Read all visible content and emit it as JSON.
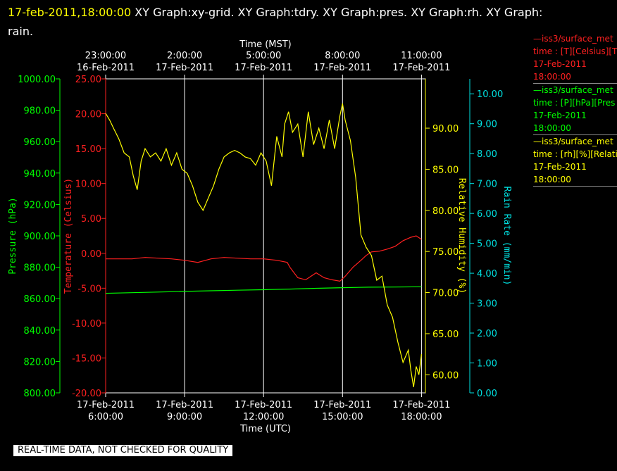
{
  "header": {
    "timestamp": "17-feb-2011,18:00:00",
    "title_rest": " XY Graph:xy-grid.  XY Graph:tdry.  XY Graph:pres.  XY Graph:rh.  XY Graph:",
    "title_line2": "rain."
  },
  "legend": [
    {
      "line1": "—iss3/surface_met",
      "line2": "time : [T][Celsius][T",
      "line3": "17-Feb-2011",
      "line4": "18:00:00",
      "color": "#ff2020"
    },
    {
      "line1": "—iss3/surface_met",
      "line2": "time : [P][hPa][Pres",
      "line3": "17-Feb-2011",
      "line4": "18:00:00",
      "color": "#00ff00"
    },
    {
      "line1": "—iss3/surface_met",
      "line2": "time : [rh][%][Relati",
      "line3": "17-Feb-2011",
      "line4": "18:00:00",
      "color": "#ffff00"
    }
  ],
  "qc_label": "REAL-TIME DATA, NOT CHECKED FOR QUALITY",
  "chart_data": {
    "type": "line",
    "title": "",
    "xlabel_bottom": "Time (UTC)",
    "xlabel_top": "Time (MST)",
    "x_ticks_bottom": [
      {
        "date": "17-Feb-2011",
        "time": "6:00:00",
        "hour": 6
      },
      {
        "date": "17-Feb-2011",
        "time": "9:00:00",
        "hour": 9
      },
      {
        "date": "17-Feb-2011",
        "time": "12:00:00",
        "hour": 12
      },
      {
        "date": "17-Feb-2011",
        "time": "15:00:00",
        "hour": 15
      },
      {
        "date": "17-Feb-2011",
        "time": "18:00:00",
        "hour": 18
      }
    ],
    "x_ticks_top": [
      {
        "time": "23:00:00",
        "date": "16-Feb-2011",
        "hour": 6
      },
      {
        "time": "2:00:00",
        "date": "17-Feb-2011",
        "hour": 9
      },
      {
        "time": "5:00:00",
        "date": "17-Feb-2011",
        "hour": 12
      },
      {
        "time": "8:00:00",
        "date": "17-Feb-2011",
        "hour": 15
      },
      {
        "time": "11:00:00",
        "date": "17-Feb-2011",
        "hour": 18
      }
    ],
    "xlim_hours_utc": [
      6,
      18.15
    ],
    "grid": true,
    "axes": {
      "pressure": {
        "label": "Pressure (hPa)",
        "color": "#00ff00",
        "ylim": [
          800,
          1000
        ],
        "ticks": [
          "1000.00",
          "980.00",
          "960.00",
          "940.00",
          "920.00",
          "900.00",
          "880.00",
          "860.00",
          "840.00",
          "820.00",
          "800.00"
        ]
      },
      "temperature": {
        "label": "Temperature (Celsius)",
        "color": "#ff2020",
        "ylim": [
          -20,
          25
        ],
        "ticks": [
          "25.00",
          "20.00",
          "15.00",
          "10.00",
          "5.00",
          "0.00",
          "-5.00",
          "-10.00",
          "-15.00",
          "-20.00"
        ]
      },
      "humidity": {
        "label": "Relative Humidity (%)",
        "color": "#ffff00",
        "ylim": [
          57.8,
          96.0
        ],
        "ticks": [
          "90.00",
          "85.00",
          "80.00",
          "75.00",
          "70.00",
          "65.00",
          "60.00"
        ]
      },
      "rain": {
        "label": "Rain Rate (mm/min)",
        "color": "#00e0e0",
        "ylim": [
          0,
          10.5
        ],
        "ticks": [
          "10.00",
          "9.00",
          "8.00",
          "7.00",
          "6.00",
          "5.00",
          "4.00",
          "3.00",
          "2.00",
          "1.00",
          "0.00"
        ]
      }
    },
    "series": [
      {
        "name": "iss3/surface_met T",
        "axis": "temperature",
        "color": "#ff2020",
        "x": [
          6.0,
          7.0,
          7.5,
          8.0,
          8.5,
          9.0,
          9.5,
          10.0,
          10.5,
          11.0,
          11.5,
          12.0,
          12.5,
          12.9,
          13.0,
          13.3,
          13.6,
          14.0,
          14.3,
          14.6,
          14.9,
          15.1,
          15.4,
          15.7,
          15.9,
          16.1,
          16.4,
          16.7,
          17.0,
          17.3,
          17.6,
          17.8,
          18.0
        ],
        "y": [
          -0.8,
          -0.8,
          -0.6,
          -0.7,
          -0.8,
          -1.0,
          -1.3,
          -0.8,
          -0.6,
          -0.7,
          -0.8,
          -0.8,
          -1.0,
          -1.3,
          -2.0,
          -3.5,
          -3.8,
          -2.8,
          -3.5,
          -3.8,
          -4.0,
          -3.3,
          -2.0,
          -1.0,
          -0.3,
          0.2,
          0.3,
          0.6,
          1.0,
          1.8,
          2.3,
          2.5,
          2.0
        ]
      },
      {
        "name": "iss3/surface_met P",
        "axis": "pressure",
        "color": "#00ff00",
        "x": [
          6.0,
          7.0,
          8.0,
          9.0,
          10.0,
          11.0,
          12.0,
          13.0,
          14.0,
          15.0,
          16.0,
          17.0,
          18.0
        ],
        "y": [
          863.4,
          863.8,
          864.2,
          864.6,
          865.0,
          865.4,
          865.7,
          866.1,
          866.6,
          867.0,
          867.3,
          867.4,
          867.6
        ]
      },
      {
        "name": "iss3/surface_met rh",
        "axis": "humidity",
        "color": "#ffff00",
        "x": [
          6.0,
          6.15,
          6.3,
          6.5,
          6.7,
          6.9,
          7.05,
          7.2,
          7.35,
          7.5,
          7.7,
          7.9,
          8.1,
          8.3,
          8.5,
          8.7,
          8.9,
          9.1,
          9.3,
          9.5,
          9.7,
          9.9,
          10.1,
          10.3,
          10.5,
          10.7,
          10.9,
          11.1,
          11.3,
          11.5,
          11.7,
          11.9,
          12.1,
          12.3,
          12.5,
          12.7,
          12.8,
          12.95,
          13.1,
          13.3,
          13.5,
          13.7,
          13.9,
          14.1,
          14.3,
          14.5,
          14.7,
          14.9,
          15.0,
          15.1,
          15.3,
          15.5,
          15.7,
          15.9,
          16.1,
          16.3,
          16.5,
          16.7,
          16.9,
          17.1,
          17.3,
          17.5,
          17.6,
          17.7,
          17.8,
          17.9,
          18.0
        ],
        "y": [
          91.8,
          91.0,
          90.0,
          88.7,
          87.0,
          86.5,
          84.2,
          82.5,
          86.0,
          87.5,
          86.5,
          87.0,
          86.0,
          87.5,
          85.5,
          87.0,
          85.0,
          84.5,
          83.0,
          81.0,
          80.0,
          81.5,
          83.0,
          85.0,
          86.5,
          87.0,
          87.3,
          87.0,
          86.5,
          86.3,
          85.5,
          87.0,
          86.0,
          83.0,
          89.0,
          86.5,
          90.5,
          92.0,
          89.5,
          90.5,
          86.5,
          92.0,
          88.0,
          90.0,
          87.5,
          91.0,
          87.5,
          91.5,
          93.0,
          91.0,
          88.5,
          84.0,
          77.0,
          75.5,
          74.5,
          71.5,
          72.0,
          68.5,
          67.0,
          64.0,
          61.5,
          63.0,
          60.5,
          58.5,
          61.0,
          60.0,
          62.5
        ]
      },
      {
        "name": "rain",
        "axis": "rain",
        "color": "#00e0e0",
        "x": [],
        "y": []
      }
    ]
  }
}
